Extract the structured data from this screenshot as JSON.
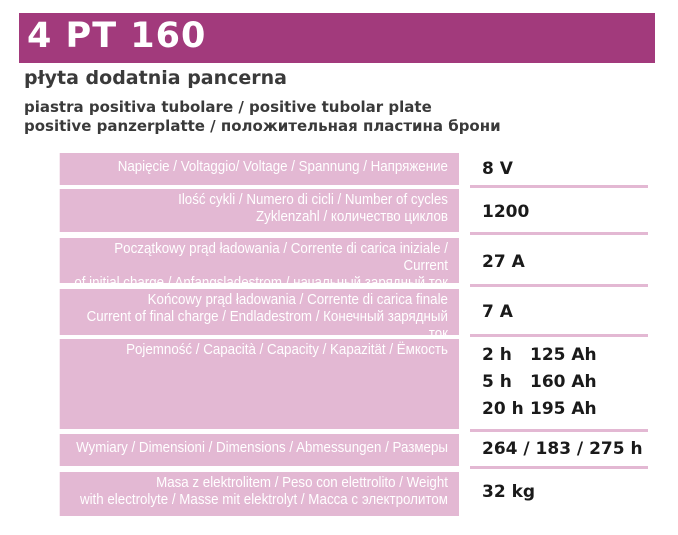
{
  "header": {
    "title": "4 PT 160",
    "subtitle_pl": "płyta dodatnia pancerna",
    "subtitle_it_en": "piastra positiva tubolare / positive tubolar plate",
    "subtitle_de_ru": "positive panzerplatte / положительная пластина брони"
  },
  "specs": [
    {
      "label": [
        "Napięcie / Voltaggio/ Voltage / Spannung / Напряжение"
      ],
      "value": "8 V"
    },
    {
      "label": [
        "Ilość cykli / Numero di cicli / Number of cycles",
        "Zyklenzahl / количество циклов"
      ],
      "value": "1200"
    },
    {
      "label": [
        "Początkowy prąd ładowania / Corrente di carica iniziale / Current",
        "of initial charge / Anfangsladestrom / начальный зарядный ток"
      ],
      "value": "27 A"
    },
    {
      "label": [
        "Końcowy prąd ładowania / Corrente di carica finale",
        "Current of final charge / Endladestrom / Конечный зарядный ток"
      ],
      "value": "7 A"
    },
    {
      "label": [
        "Pojemność / Capacità / Capacity / Kapazität / Ёмкость"
      ],
      "capacity": [
        {
          "hours": "2 h",
          "ah": "125 Ah"
        },
        {
          "hours": "5 h",
          "ah": "160 Ah"
        },
        {
          "hours": "20 h",
          "ah": "195 Ah"
        }
      ]
    },
    {
      "label": [
        "Wymiary / Dimensioni /  Dimensions / Abmessungen / Размеры"
      ],
      "value": "264 / 183 / 275 h"
    },
    {
      "label": [
        "Masa z elektrolitem / Peso con elettrolito / Weight",
        "with electrolyte / Masse mit elektrolyt / Масса с электролитом"
      ],
      "value": "32 kg"
    }
  ],
  "colors": {
    "title_bar": "#a23a7c",
    "label_bg": "#e3b8d3",
    "label_text": "#ffffff"
  }
}
